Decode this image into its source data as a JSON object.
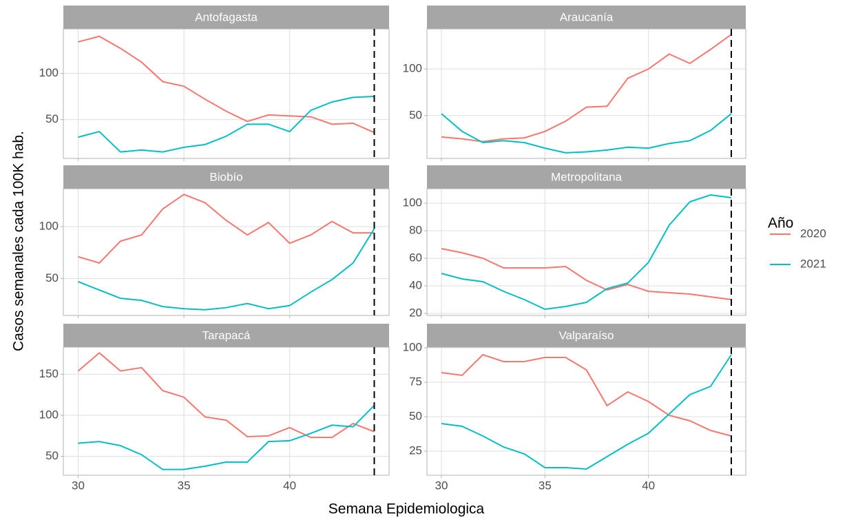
{
  "y_label": "Casos semanales cada 100K hab.",
  "x_label": "Semana Epidemiologica",
  "legend_title": "Año",
  "chart_data": [
    {
      "type": "line",
      "title": "Antofagasta",
      "x": [
        30,
        31,
        32,
        33,
        34,
        35,
        36,
        37,
        38,
        39,
        40,
        41,
        42,
        43,
        44
      ],
      "series": [
        {
          "name": "2020",
          "color": "#F8766D",
          "values": [
            134,
            140,
            127,
            112,
            91,
            86,
            72,
            59,
            48,
            55,
            54,
            53,
            45,
            46,
            36
          ]
        },
        {
          "name": "2021",
          "color": "#00BFC4",
          "values": [
            31,
            37,
            15,
            17,
            15,
            20,
            23,
            32,
            45,
            45,
            37,
            60,
            69,
            74,
            75
          ]
        }
      ],
      "xlim": [
        29.3,
        44.7
      ],
      "xticks": [
        30,
        35,
        40
      ],
      "ylim": [
        8,
        148
      ],
      "yticks": [
        50,
        100
      ],
      "vline": 44,
      "grid": true
    },
    {
      "type": "line",
      "title": "Araucanía",
      "x": [
        30,
        31,
        32,
        33,
        34,
        35,
        36,
        37,
        38,
        39,
        40,
        41,
        42,
        43,
        44
      ],
      "series": [
        {
          "name": "2020",
          "color": "#F8766D",
          "values": [
            27,
            25,
            22,
            25,
            26,
            33,
            44,
            59,
            60,
            90,
            100,
            116,
            106,
            121,
            137
          ]
        },
        {
          "name": "2021",
          "color": "#00BFC4",
          "values": [
            52,
            33,
            21,
            23,
            21,
            15,
            10,
            11,
            13,
            16,
            15,
            20,
            23,
            34,
            52
          ]
        }
      ],
      "xlim": [
        29.3,
        44.7
      ],
      "xticks": [
        30,
        35,
        40
      ],
      "ylim": [
        4,
        143
      ],
      "yticks": [
        50,
        100
      ],
      "vline": 44,
      "grid": true
    },
    {
      "type": "line",
      "title": "Biobío",
      "x": [
        30,
        31,
        32,
        33,
        34,
        35,
        36,
        37,
        38,
        39,
        40,
        41,
        42,
        43,
        44
      ],
      "series": [
        {
          "name": "2020",
          "color": "#F8766D",
          "values": [
            71,
            65,
            86,
            92,
            117,
            131,
            123,
            106,
            92,
            104,
            84,
            92,
            105,
            94,
            94
          ]
        },
        {
          "name": "2021",
          "color": "#00BFC4",
          "values": [
            47,
            39,
            31,
            29,
            23,
            21,
            20,
            22,
            26,
            21,
            24,
            37,
            49,
            65,
            98
          ]
        }
      ],
      "xlim": [
        29.3,
        44.7
      ],
      "xticks": [
        30,
        35,
        40
      ],
      "ylim": [
        14.5,
        136.5
      ],
      "yticks": [
        50,
        100
      ],
      "vline": 44,
      "grid": true
    },
    {
      "type": "line",
      "title": "Metropolitana",
      "x": [
        30,
        31,
        32,
        33,
        34,
        35,
        36,
        37,
        38,
        39,
        40,
        41,
        42,
        43,
        44
      ],
      "series": [
        {
          "name": "2020",
          "color": "#F8766D",
          "values": [
            67,
            64,
            60,
            53,
            53,
            53,
            54,
            44,
            37,
            41,
            36,
            35,
            34,
            32,
            30
          ]
        },
        {
          "name": "2021",
          "color": "#00BFC4",
          "values": [
            49,
            45,
            43,
            36,
            30,
            23,
            25,
            28,
            38,
            42,
            57,
            84,
            101,
            106,
            104
          ]
        }
      ],
      "xlim": [
        29.3,
        44.7
      ],
      "xticks": [
        30,
        35,
        40
      ],
      "ylim": [
        18.5,
        110.5
      ],
      "yticks": [
        20,
        40,
        60,
        80,
        100
      ],
      "vline": 44,
      "grid": true
    },
    {
      "type": "line",
      "title": "Tarapacá",
      "x": [
        30,
        31,
        32,
        33,
        34,
        35,
        36,
        37,
        38,
        39,
        40,
        41,
        42,
        43,
        44
      ],
      "series": [
        {
          "name": "2020",
          "color": "#F8766D",
          "values": [
            154,
            176,
            154,
            158,
            130,
            122,
            98,
            94,
            74,
            75,
            85,
            73,
            73,
            90,
            80
          ]
        },
        {
          "name": "2021",
          "color": "#00BFC4",
          "values": [
            66,
            68,
            63,
            52,
            34,
            34,
            38,
            43,
            43,
            68,
            69,
            78,
            88,
            86,
            112
          ]
        }
      ],
      "xlim": [
        29.3,
        44.7
      ],
      "xticks": [
        30,
        35,
        40
      ],
      "ylim": [
        27,
        183
      ],
      "yticks": [
        50,
        100,
        150
      ],
      "vline": 44,
      "grid": true
    },
    {
      "type": "line",
      "title": "Valparaíso",
      "x": [
        30,
        31,
        32,
        33,
        34,
        35,
        36,
        37,
        38,
        39,
        40,
        41,
        42,
        43,
        44
      ],
      "series": [
        {
          "name": "2020",
          "color": "#F8766D",
          "values": [
            82,
            80,
            95,
            90,
            90,
            93,
            93,
            84,
            58,
            68,
            61,
            51,
            47,
            40,
            36
          ]
        },
        {
          "name": "2021",
          "color": "#00BFC4",
          "values": [
            45,
            43,
            36,
            28,
            23,
            13,
            13,
            12,
            21,
            30,
            38,
            52,
            66,
            72,
            95
          ]
        }
      ],
      "xlim": [
        29.3,
        44.7
      ],
      "xticks": [
        30,
        35,
        40
      ],
      "ylim": [
        7.5,
        100.5
      ],
      "yticks": [
        25,
        50,
        75,
        100
      ],
      "vline": 44,
      "grid": true
    }
  ]
}
